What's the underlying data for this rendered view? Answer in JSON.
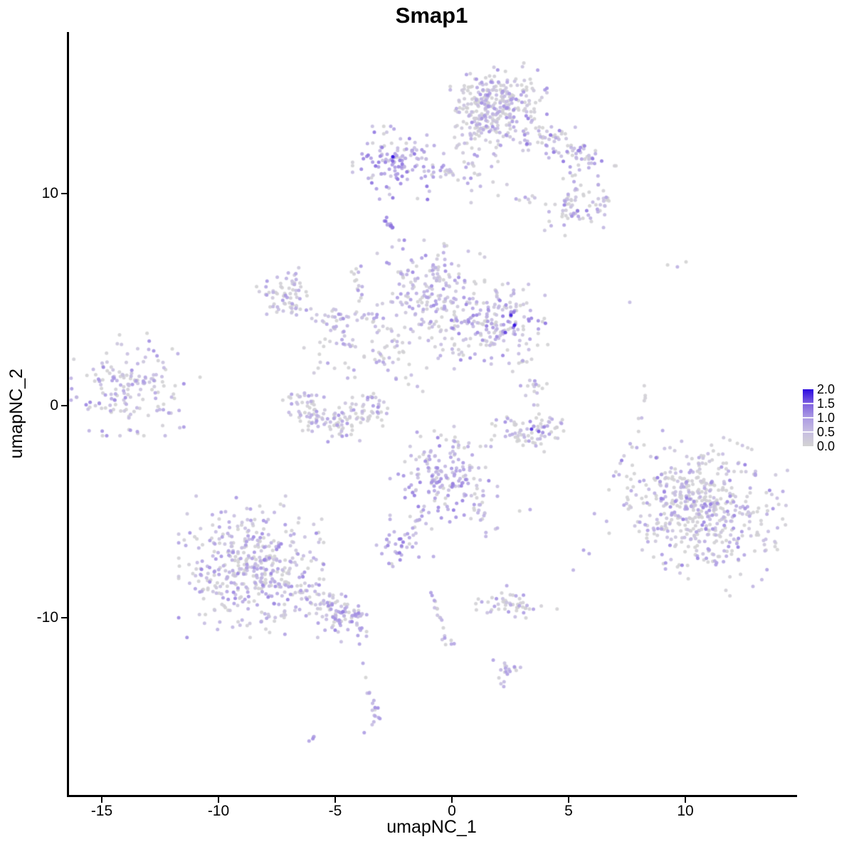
{
  "title": "Smap1",
  "axes": {
    "x_label": "umapNC_1",
    "y_label": "umapNC_2",
    "x_tick_labels": [
      "-15",
      "-10",
      "-5",
      "0",
      "5",
      "10"
    ],
    "y_tick_labels": [
      "10",
      "0",
      "-10"
    ]
  },
  "legend": {
    "tick_labels": [
      "2.0",
      "1.5",
      "1.0",
      "0.5",
      "0.0"
    ]
  },
  "chart_data": {
    "type": "scatter",
    "title": "Smap1",
    "xlabel": "umapNC_1",
    "ylabel": "umapNC_2",
    "xlim": [
      -16.4,
      14.7
    ],
    "ylim": [
      -18.4,
      17.6
    ],
    "x_ticks": [
      -15,
      -10,
      -5,
      0,
      5,
      10
    ],
    "y_ticks": [
      10,
      0,
      -10
    ],
    "grid": false,
    "legend_position": "right",
    "colorbar": {
      "values": [
        2.0,
        1.5,
        1.0,
        0.5,
        0.0
      ],
      "range": [
        0,
        2
      ],
      "low_color": "#D3D3D3",
      "high_color": "#2A09E0"
    },
    "color_stops": [
      {
        "t": 0.0,
        "color": "#D3D3D3"
      },
      {
        "t": 0.25,
        "color": "#C7BEE2"
      },
      {
        "t": 0.5,
        "color": "#AC9BE3"
      },
      {
        "t": 0.75,
        "color": "#7E60DF"
      },
      {
        "t": 1.0,
        "color": "#2A09E0"
      }
    ],
    "point_radius": 2.5,
    "point_alpha": 0.9,
    "point_order": "by-expression",
    "clusters": [
      {
        "name": "top-main",
        "type": "gauss",
        "cx": 2.0,
        "cy": 14.2,
        "sx": 0.9,
        "sy": 0.85,
        "n": 260,
        "grey": 0.38,
        "elo": 0.15,
        "ehi": 1.15
      },
      {
        "name": "top-main-lower",
        "type": "gauss",
        "cx": 1.3,
        "cy": 13.4,
        "sx": 0.5,
        "sy": 0.8,
        "n": 60,
        "grey": 0.38,
        "elo": 0.15,
        "ehi": 1.1
      },
      {
        "name": "top-below-scatter",
        "type": "gauss",
        "cx": 1.3,
        "cy": 11.3,
        "sx": 0.6,
        "sy": 0.85,
        "n": 28,
        "grey": 0.4,
        "elo": 0.2,
        "ehi": 1.0
      },
      {
        "name": "top-right-band",
        "type": "band",
        "x1": 3.5,
        "y1": 12.95,
        "x2": 6.4,
        "y2": 11.25,
        "w": 0.42,
        "n": 85,
        "grey": 0.3,
        "elo": 0.3,
        "ehi": 1.35
      },
      {
        "name": "right-ext-blob",
        "type": "gauss",
        "cx": 5.75,
        "cy": 9.55,
        "sx": 0.55,
        "sy": 0.5,
        "n": 55,
        "grey": 0.3,
        "elo": 0.3,
        "ehi": 1.3
      },
      {
        "name": "right-ext-trail",
        "type": "band",
        "x1": 4.3,
        "y1": 8.7,
        "x2": 5.3,
        "y2": 10.3,
        "w": 0.35,
        "n": 22,
        "grey": 0.5,
        "elo": 0.2,
        "ehi": 1.0
      },
      {
        "name": "lefttop-dense",
        "type": "gauss",
        "cx": -2.3,
        "cy": 11.45,
        "sx": 0.85,
        "sy": 0.75,
        "n": 120,
        "grey": 0.14,
        "elo": 0.35,
        "ehi": 1.45
      },
      {
        "name": "lefttop-trail",
        "type": "band",
        "x1": -1.2,
        "y1": 11.2,
        "x2": 0.8,
        "y2": 10.85,
        "w": 0.18,
        "n": 24,
        "grey": 0.35,
        "elo": 0.3,
        "ehi": 1.1
      },
      {
        "name": "smile-arc",
        "type": "arc",
        "cx": 3.1,
        "cy": 10.05,
        "r": 0.38,
        "a1": 200,
        "a2": 340,
        "w": 0.08,
        "n": 7,
        "grey": 0.45,
        "elo": 0.3,
        "ehi": 1.0
      },
      {
        "name": "tiny-blob",
        "type": "band",
        "x1": -2.95,
        "y1": 8.78,
        "x2": -2.5,
        "y2": 8.33,
        "w": 0.09,
        "n": 11,
        "grey": 0.0,
        "elo": 0.7,
        "ehi": 1.4
      },
      {
        "name": "mid-main",
        "type": "gauss",
        "cx": -0.9,
        "cy": 5.5,
        "sx": 1.0,
        "sy": 1.0,
        "n": 175,
        "grey": 0.3,
        "elo": 0.25,
        "ehi": 1.2
      },
      {
        "name": "mid-right",
        "type": "gauss",
        "cx": 1.8,
        "cy": 3.9,
        "sx": 1.15,
        "sy": 0.85,
        "n": 185,
        "grey": 0.28,
        "elo": 0.3,
        "ehi": 1.35
      },
      {
        "name": "mid-below-scatter",
        "type": "gauss",
        "cx": -0.2,
        "cy": 2.6,
        "sx": 0.45,
        "sy": 0.5,
        "n": 14,
        "grey": 0.5,
        "elo": 0.2,
        "ehi": 0.9
      },
      {
        "name": "ring",
        "type": "arc",
        "cx": -7.1,
        "cy": 5.2,
        "r": 0.72,
        "a1": 0,
        "a2": 360,
        "w": 0.3,
        "n": 70,
        "grey": 0.42,
        "elo": 0.2,
        "ehi": 1.05
      },
      {
        "name": "diag-string",
        "type": "band",
        "x1": -4.2,
        "y1": 6.65,
        "x2": -3.75,
        "y2": 4.95,
        "w": 0.13,
        "n": 14,
        "grey": 0.35,
        "elo": 0.3,
        "ehi": 1.05
      },
      {
        "name": "trail-horiz",
        "type": "band",
        "x1": -5.85,
        "y1": 4.25,
        "x2": -2.8,
        "y2": 4.0,
        "w": 0.22,
        "n": 38,
        "grey": 0.35,
        "elo": 0.3,
        "ehi": 1.1
      },
      {
        "name": "trail-branch",
        "type": "band",
        "x1": -5.2,
        "y1": 3.95,
        "x2": -4.35,
        "y2": 2.8,
        "w": 0.2,
        "n": 20,
        "grey": 0.35,
        "elo": 0.3,
        "ehi": 1.0
      },
      {
        "name": "trail-scatter",
        "type": "gauss",
        "cx": -2.7,
        "cy": 3.0,
        "sx": 0.55,
        "sy": 0.6,
        "n": 22,
        "grey": 0.5,
        "elo": 0.2,
        "ehi": 0.9
      },
      {
        "name": "farleft",
        "type": "gauss",
        "cx": -13.9,
        "cy": 1.0,
        "sx": 1.05,
        "sy": 1.05,
        "n": 160,
        "grey": 0.34,
        "elo": 0.3,
        "ehi": 1.2
      },
      {
        "name": "crescent-left",
        "type": "arc",
        "cx": -4.85,
        "cy": 0.6,
        "r": 1.5,
        "a1": 180,
        "a2": 360,
        "w": 0.42,
        "n": 150,
        "grey": 0.44,
        "elo": 0.25,
        "ehi": 1.1
      },
      {
        "name": "crescent-string",
        "type": "band",
        "x1": -3.2,
        "y1": 2.3,
        "x2": -1.45,
        "y2": 0.55,
        "w": 0.16,
        "n": 15,
        "grey": 0.3,
        "elo": 0.4,
        "ehi": 1.1
      },
      {
        "name": "crescent-top-scatter",
        "type": "gauss",
        "cx": -4.9,
        "cy": 2.1,
        "sx": 0.8,
        "sy": 0.45,
        "n": 16,
        "grey": 0.55,
        "elo": 0.2,
        "ehi": 0.9
      },
      {
        "name": "vstring-right",
        "type": "band",
        "x1": 2.95,
        "y1": 2.3,
        "x2": 3.75,
        "y2": 0.1,
        "w": 0.3,
        "n": 24,
        "grey": 0.45,
        "elo": 0.3,
        "ehi": 1.1
      },
      {
        "name": "crescent-right",
        "type": "arc",
        "cx": 3.4,
        "cy": -0.3,
        "r": 1.15,
        "a1": 190,
        "a2": 350,
        "w": 0.35,
        "n": 75,
        "grey": 0.55,
        "elo": 0.25,
        "ehi": 1.2
      },
      {
        "name": "centerlow",
        "type": "gauss",
        "cx": -0.35,
        "cy": -3.4,
        "sx": 1.0,
        "sy": 1.05,
        "n": 185,
        "grey": 0.22,
        "elo": 0.35,
        "ehi": 1.3
      },
      {
        "name": "leg-left",
        "type": "band",
        "x1": -1.1,
        "y1": -4.8,
        "x2": -1.75,
        "y2": -6.0,
        "w": 0.12,
        "n": 10,
        "grey": 0.2,
        "elo": 0.4,
        "ehi": 1.1
      },
      {
        "name": "leg-right",
        "type": "band",
        "x1": 1.0,
        "y1": -4.3,
        "x2": 1.45,
        "y2": -5.9,
        "w": 0.15,
        "n": 12,
        "grey": 0.25,
        "elo": 0.4,
        "ehi": 1.1
      },
      {
        "name": "small-blob",
        "type": "gauss",
        "cx": -2.3,
        "cy": -6.65,
        "sx": 0.42,
        "sy": 0.35,
        "n": 32,
        "grey": 0.18,
        "elo": 0.45,
        "ehi": 1.35
      },
      {
        "name": "botleft-main",
        "type": "gauss",
        "cx": -8.6,
        "cy": -7.6,
        "sx": 1.35,
        "sy": 1.45,
        "n": 430,
        "grey": 0.3,
        "elo": 0.3,
        "ehi": 1.2
      },
      {
        "name": "botleft-tail",
        "type": "band",
        "x1": -6.6,
        "y1": -8.3,
        "x2": -4.1,
        "y2": -10.3,
        "w": 0.4,
        "n": 75,
        "grey": 0.3,
        "elo": 0.3,
        "ehi": 1.2
      },
      {
        "name": "tail-end-blob",
        "type": "gauss",
        "cx": -4.5,
        "cy": -10.1,
        "sx": 0.55,
        "sy": 0.45,
        "n": 40,
        "grey": 0.28,
        "elo": 0.35,
        "ehi": 1.25
      },
      {
        "name": "right-big",
        "type": "gauss",
        "cx": 10.6,
        "cy": -4.7,
        "sx": 1.7,
        "sy": 1.45,
        "rot": -25,
        "n": 540,
        "grey": 0.5,
        "elo": 0.25,
        "ehi": 1.3
      },
      {
        "name": "wavy-string-a",
        "type": "band",
        "x1": -0.82,
        "y1": -9.15,
        "x2": -0.5,
        "y2": -10.4,
        "w": 0.1,
        "n": 9,
        "grey": 0.25,
        "elo": 0.4,
        "ehi": 1.15
      },
      {
        "name": "wavy-string-b",
        "type": "band",
        "x1": -0.5,
        "y1": -10.4,
        "x2": 0.1,
        "y2": -11.6,
        "w": 0.1,
        "n": 8,
        "grey": 0.3,
        "elo": 0.4,
        "ehi": 1.1
      },
      {
        "name": "hcluster",
        "type": "gauss",
        "cx": 2.6,
        "cy": -9.4,
        "sx": 0.85,
        "sy": 0.3,
        "n": 48,
        "grey": 0.5,
        "elo": 0.3,
        "ehi": 1.15
      },
      {
        "name": "s3-blob",
        "type": "band",
        "x1": 2.05,
        "y1": -12.9,
        "x2": 2.75,
        "y2": -12.25,
        "w": 0.18,
        "n": 18,
        "grey": 0.25,
        "elo": 0.4,
        "ehi": 1.2
      },
      {
        "name": "j-tail",
        "type": "band",
        "x1": -3.6,
        "y1": -13.35,
        "x2": -3.2,
        "y2": -14.5,
        "w": 0.12,
        "n": 9,
        "grey": 0.15,
        "elo": 0.5,
        "ehi": 1.2
      },
      {
        "name": "j-tail2",
        "type": "band",
        "x1": -3.2,
        "y1": -14.5,
        "x2": -3.6,
        "y2": -15.2,
        "w": 0.12,
        "n": 7,
        "grey": 0.15,
        "elo": 0.5,
        "ehi": 1.2
      },
      {
        "name": "tiny-pair",
        "type": "band",
        "x1": -6.1,
        "y1": -15.9,
        "x2": -5.85,
        "y2": -15.6,
        "w": 0.05,
        "n": 4,
        "grey": 0.0,
        "elo": 0.7,
        "ehi": 1.1
      },
      {
        "name": "right-vstring",
        "type": "band",
        "x1": 8.3,
        "y1": 0.9,
        "x2": 8.0,
        "y2": -0.6,
        "w": 0.08,
        "n": 6,
        "grey": 0.35,
        "elo": 0.4,
        "ehi": 0.9
      }
    ],
    "singles": [
      [
        -2.53,
        11.74,
        2.0
      ],
      [
        2.53,
        4.26,
        1.85
      ],
      [
        2.68,
        3.79,
        2.0
      ],
      [
        2.29,
        3.45,
        1.7
      ],
      [
        3.41,
        -1.11,
        1.8
      ],
      [
        3.72,
        -1.22,
        1.55
      ],
      [
        9.24,
        6.64,
        0
      ],
      [
        9.66,
        6.54,
        0.7
      ],
      [
        10.03,
        6.78,
        0
      ],
      [
        7.62,
        4.87,
        0.55
      ],
      [
        8.23,
        -1.85,
        0
      ],
      [
        2.9,
        -4.97,
        0
      ],
      [
        3.35,
        -4.9,
        0.8
      ],
      [
        5.64,
        -6.81,
        0.95
      ],
      [
        5.88,
        -6.98,
        0.85
      ],
      [
        5.2,
        -7.75,
        0.7
      ],
      [
        -1.68,
        -5.77,
        0.9
      ],
      [
        -0.79,
        -7.11,
        0.8
      ],
      [
        -2.53,
        -7.58,
        0.6
      ],
      [
        -3.96,
        -11.24,
        0.9
      ],
      [
        -3.66,
        -10.87,
        0.7
      ],
      [
        2.35,
        -8.49,
        0.8
      ],
      [
        1.77,
        -12.0,
        0.9
      ],
      [
        -3.81,
        -12.15,
        0.85
      ],
      [
        -3.69,
        -12.82,
        0
      ],
      [
        -0.85,
        -8.95,
        1.0
      ],
      [
        -0.9,
        -8.82,
        0.95
      ],
      [
        -11.98,
        2.68,
        0
      ],
      [
        -11.74,
        2.45,
        0.75
      ],
      [
        -10.79,
        1.34,
        0
      ],
      [
        -12.71,
        0.6,
        0.8
      ],
      [
        -12.35,
        0.07,
        0
      ],
      [
        -12.13,
        -0.34,
        0.85
      ],
      [
        -11.89,
        0.34,
        0
      ],
      [
        -1.83,
        1.95,
        0
      ],
      [
        -1.74,
        1.44,
        0.5
      ],
      [
        -1.86,
        1.01,
        0
      ],
      [
        -2.35,
        3.02,
        0.6
      ],
      [
        -2.07,
        2.52,
        0
      ]
    ]
  }
}
